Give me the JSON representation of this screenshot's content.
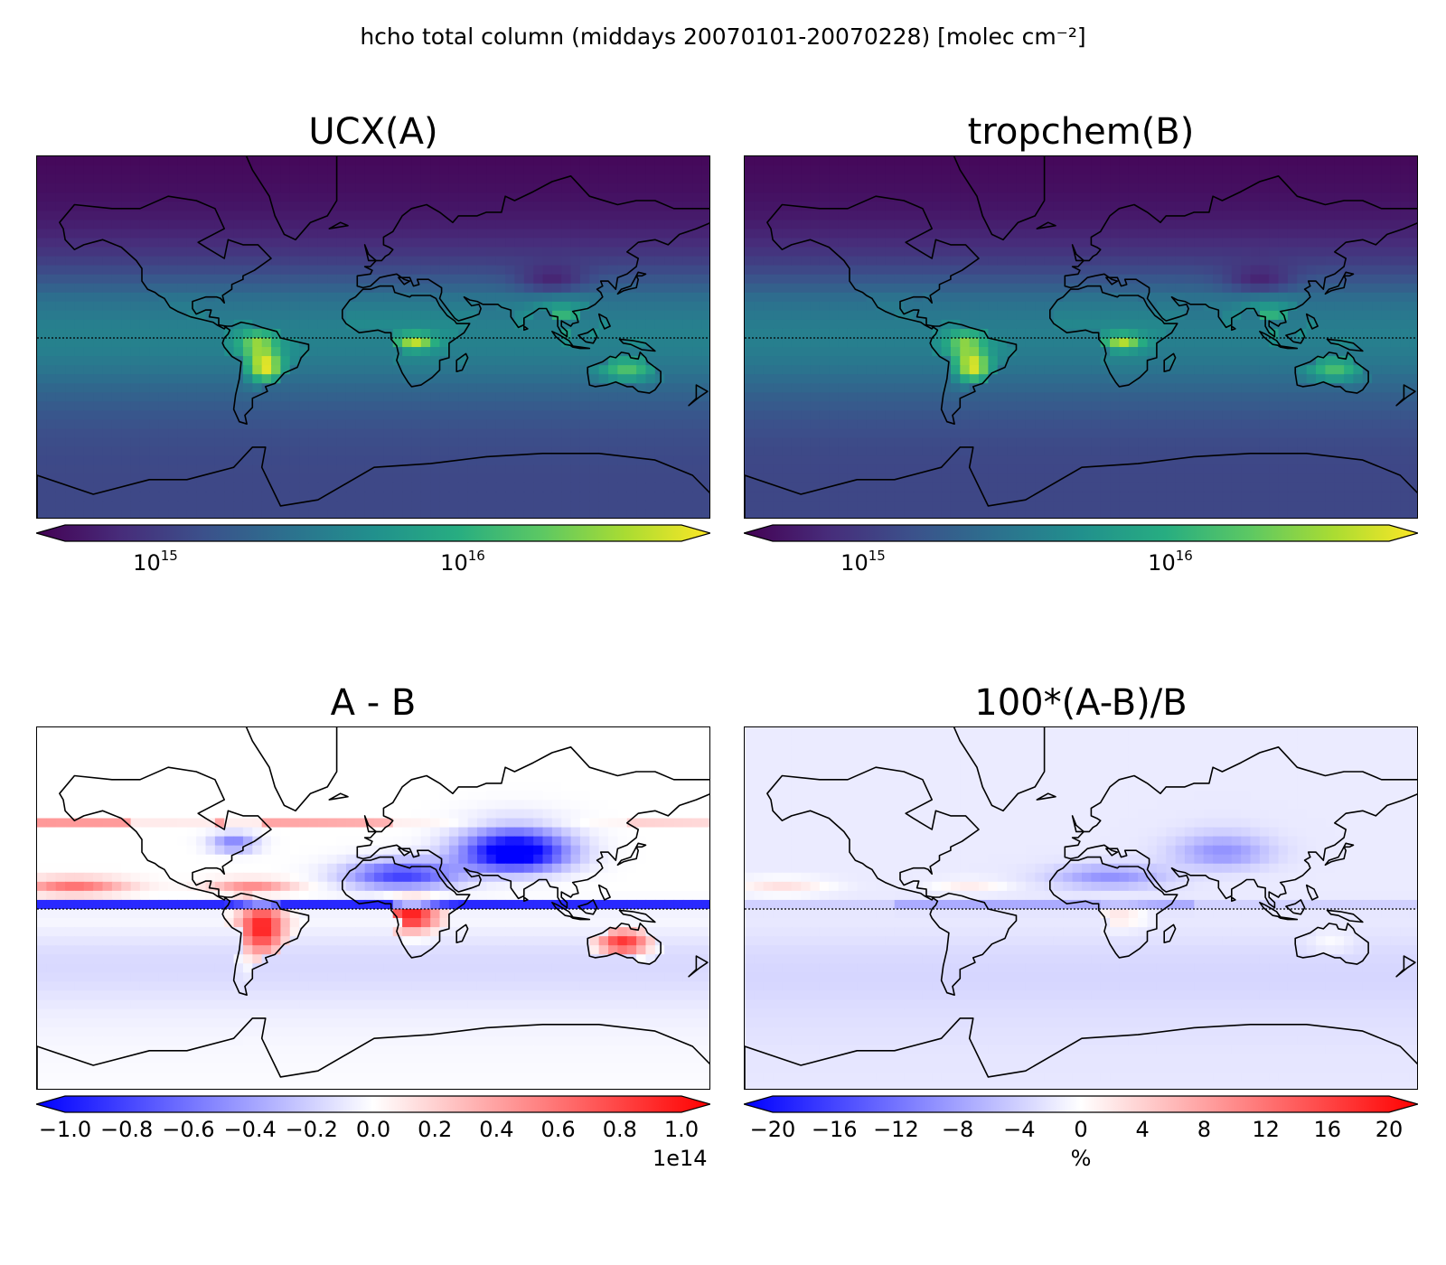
{
  "suptitle": "hcho total column (middays 20070101-20070228) [molec cm⁻²]",
  "panels": [
    {
      "id": "a",
      "title": "UCX(A)",
      "colormap": "viridis",
      "scale": "log",
      "range": [
        500000000000000.0,
        4.5e+16
      ],
      "ticks": [
        {
          "base": "10",
          "exp": "15"
        },
        {
          "base": "10",
          "exp": "16"
        }
      ]
    },
    {
      "id": "b",
      "title": "tropchem(B)",
      "colormap": "viridis",
      "scale": "log",
      "range": [
        500000000000000.0,
        4.5e+16
      ],
      "ticks": [
        {
          "base": "10",
          "exp": "15"
        },
        {
          "base": "10",
          "exp": "16"
        }
      ]
    },
    {
      "id": "c",
      "title": "A - B",
      "colormap": "bwr",
      "scale": "linear",
      "range": [
        -1.0,
        1.0
      ],
      "ticks": [
        "−1.0",
        "−0.8",
        "−0.6",
        "−0.4",
        "−0.2",
        "0.0",
        "0.2",
        "0.4",
        "0.6",
        "0.8",
        "1.0"
      ],
      "offset_label": "1e14"
    },
    {
      "id": "d",
      "title": "100*(A-B)/B",
      "colormap": "bwr",
      "scale": "linear",
      "range": [
        -20,
        20
      ],
      "ticks": [
        "−20",
        "−16",
        "−12",
        "−8",
        "−4",
        "0",
        "4",
        "8",
        "12",
        "16",
        "20"
      ],
      "unit_label": "%"
    }
  ],
  "colors": {
    "viridis": [
      "#440154",
      "#472c7a",
      "#3b518b",
      "#2c718e",
      "#21908d",
      "#27ad81",
      "#5cc863",
      "#aadc32",
      "#fde725"
    ],
    "bwr": [
      "#0000ff",
      "#ffffff",
      "#ff0000"
    ],
    "coastline": "#000000"
  }
}
